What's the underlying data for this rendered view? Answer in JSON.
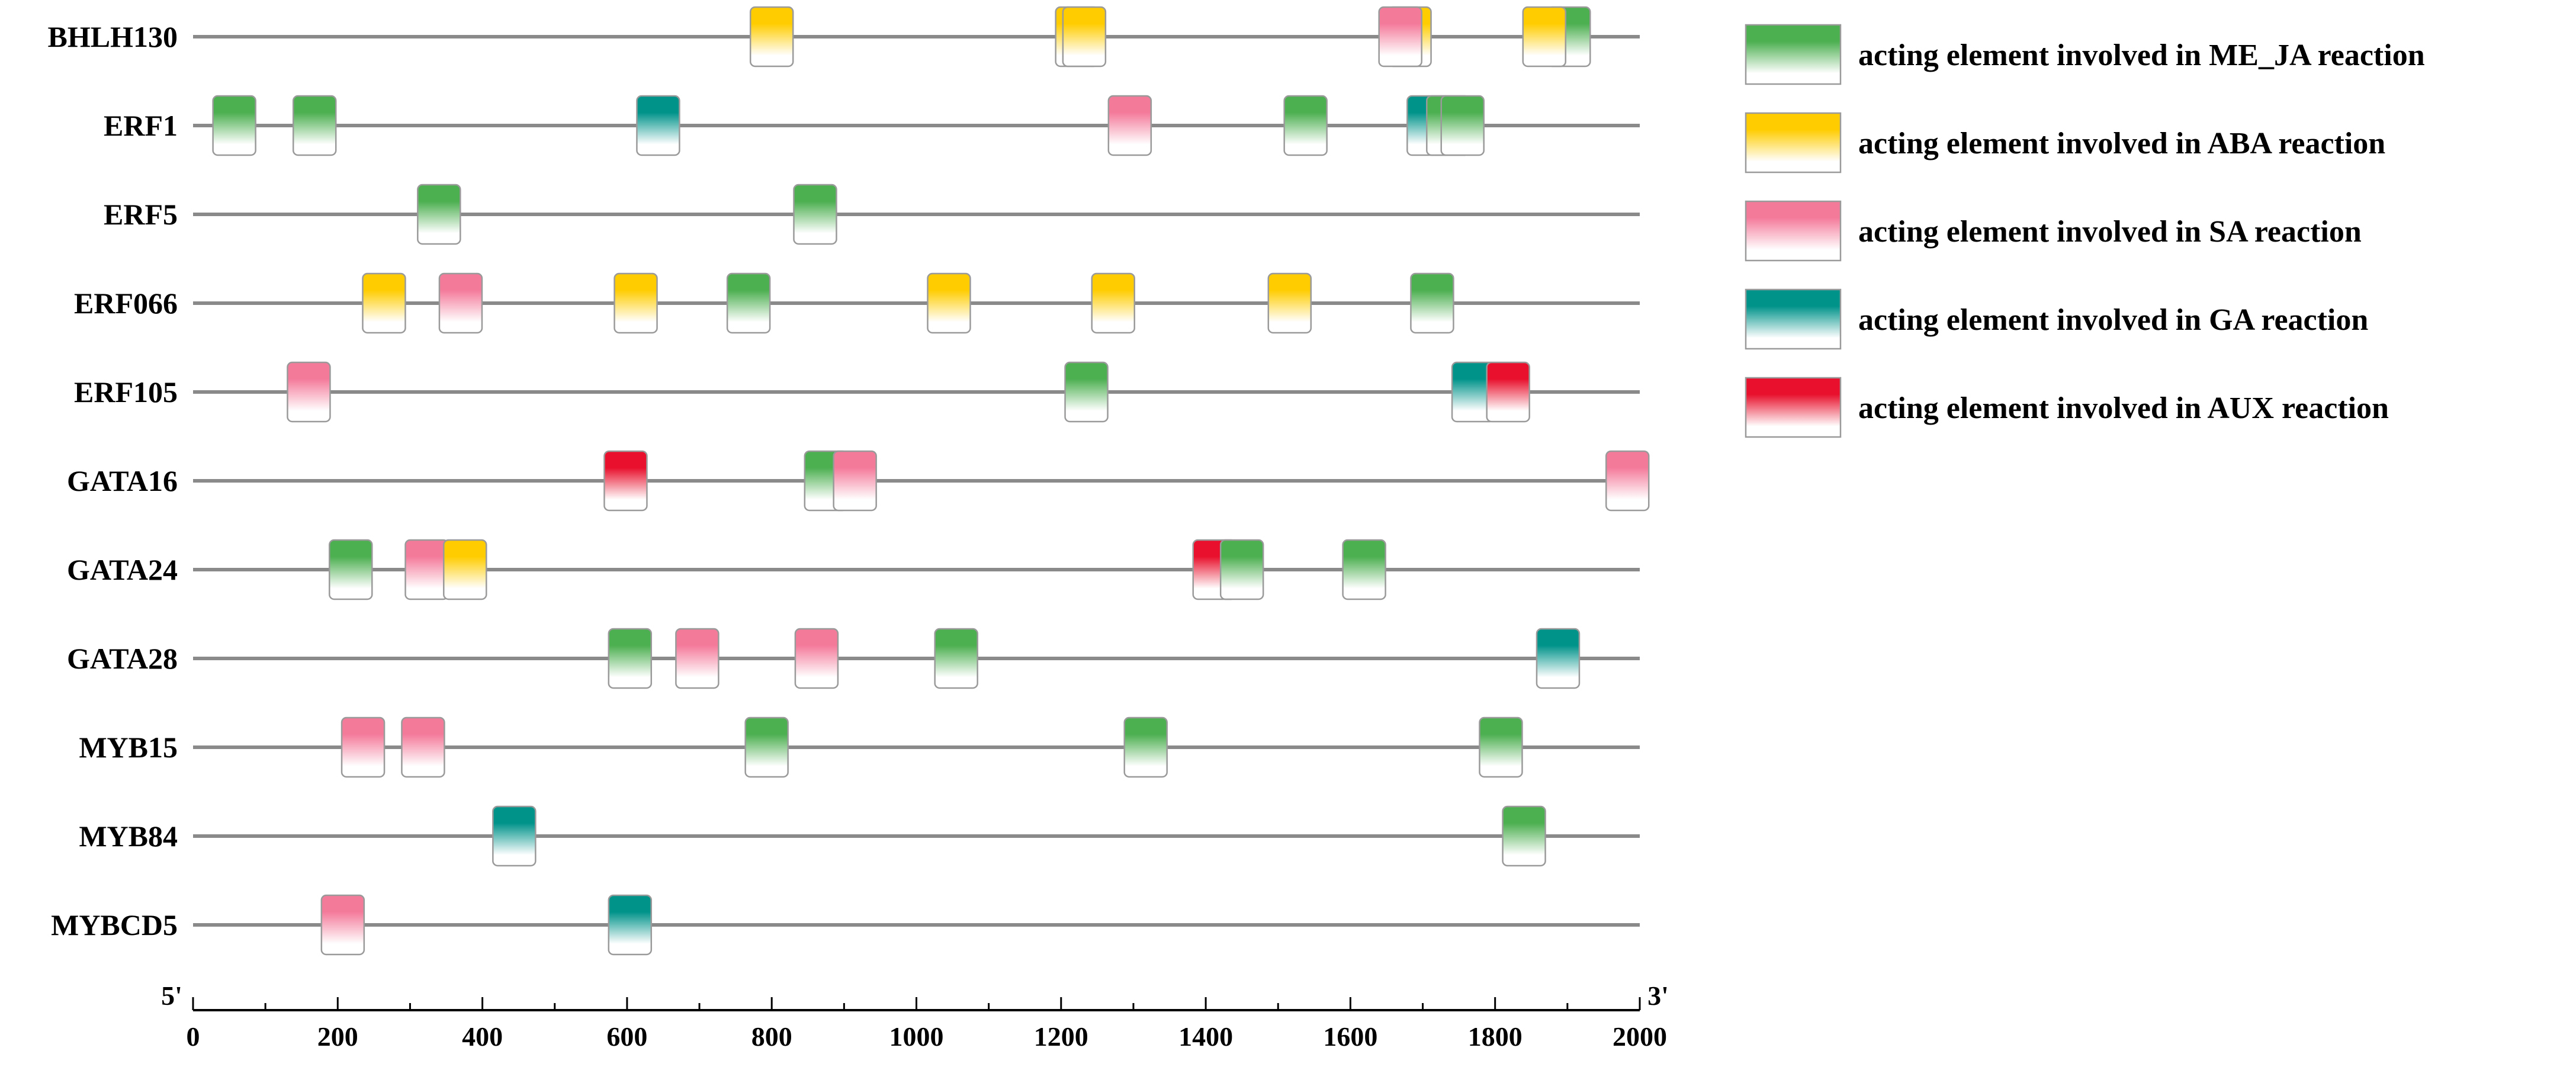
{
  "chart_data": {
    "type": "sequence-feature-map",
    "axis": {
      "min": 0,
      "max": 2000,
      "ticks": [
        0,
        200,
        400,
        600,
        800,
        1000,
        1200,
        1400,
        1600,
        1800,
        2000
      ],
      "start_label": "5'",
      "end_label": "3'"
    },
    "categories": {
      "ME_JA": {
        "label": "acting element involved in ME_JA reaction",
        "color": "#4caf50"
      },
      "ABA": {
        "label": "acting element involved in ABA reaction",
        "color": "#ffcc00"
      },
      "SA": {
        "label": "acting element involved in SA reaction",
        "color": "#f47a9a"
      },
      "GA": {
        "label": "acting element involved in GA reaction",
        "color": "#00938a"
      },
      "AUX": {
        "label": "acting element involved in AUX reaction",
        "color": "#e8102c"
      }
    },
    "legend_order": [
      "ME_JA",
      "ABA",
      "SA",
      "GA",
      "AUX"
    ],
    "genes": [
      {
        "name": "BHLH130",
        "elements": [
          {
            "pos": 800,
            "type": "ABA"
          },
          {
            "pos": 1222,
            "type": "ABA"
          },
          {
            "pos": 1232,
            "type": "ABA"
          },
          {
            "pos": 1682,
            "type": "ABA"
          },
          {
            "pos": 1669,
            "type": "SA"
          },
          {
            "pos": 1902,
            "type": "ME_JA"
          },
          {
            "pos": 1868,
            "type": "ABA"
          }
        ]
      },
      {
        "name": "ERF1",
        "elements": [
          {
            "pos": 57,
            "type": "ME_JA"
          },
          {
            "pos": 168,
            "type": "ME_JA"
          },
          {
            "pos": 643,
            "type": "GA"
          },
          {
            "pos": 1295,
            "type": "SA"
          },
          {
            "pos": 1538,
            "type": "ME_JA"
          },
          {
            "pos": 1708,
            "type": "GA"
          },
          {
            "pos": 1735,
            "type": "ME_JA"
          },
          {
            "pos": 1755,
            "type": "ME_JA"
          }
        ]
      },
      {
        "name": "ERF5",
        "elements": [
          {
            "pos": 340,
            "type": "ME_JA"
          },
          {
            "pos": 860,
            "type": "ME_JA"
          }
        ]
      },
      {
        "name": "ERF066",
        "elements": [
          {
            "pos": 264,
            "type": "ABA"
          },
          {
            "pos": 370,
            "type": "SA"
          },
          {
            "pos": 612,
            "type": "ABA"
          },
          {
            "pos": 768,
            "type": "ME_JA"
          },
          {
            "pos": 1045,
            "type": "ABA"
          },
          {
            "pos": 1272,
            "type": "ABA"
          },
          {
            "pos": 1516,
            "type": "ABA"
          },
          {
            "pos": 1713,
            "type": "ME_JA"
          }
        ]
      },
      {
        "name": "ERF105",
        "elements": [
          {
            "pos": 160,
            "type": "SA"
          },
          {
            "pos": 1235,
            "type": "ME_JA"
          },
          {
            "pos": 1770,
            "type": "GA"
          },
          {
            "pos": 1818,
            "type": "AUX"
          }
        ]
      },
      {
        "name": "GATA16",
        "elements": [
          {
            "pos": 598,
            "type": "AUX"
          },
          {
            "pos": 875,
            "type": "ME_JA"
          },
          {
            "pos": 915,
            "type": "SA"
          },
          {
            "pos": 1983,
            "type": "SA"
          }
        ]
      },
      {
        "name": "GATA24",
        "elements": [
          {
            "pos": 218,
            "type": "ME_JA"
          },
          {
            "pos": 323,
            "type": "SA"
          },
          {
            "pos": 376,
            "type": "ABA"
          },
          {
            "pos": 1412,
            "type": "AUX"
          },
          {
            "pos": 1450,
            "type": "ME_JA"
          },
          {
            "pos": 1619,
            "type": "ME_JA"
          }
        ]
      },
      {
        "name": "GATA28",
        "elements": [
          {
            "pos": 604,
            "type": "ME_JA"
          },
          {
            "pos": 697,
            "type": "SA"
          },
          {
            "pos": 862,
            "type": "SA"
          },
          {
            "pos": 1055,
            "type": "ME_JA"
          },
          {
            "pos": 1887,
            "type": "GA"
          }
        ]
      },
      {
        "name": "MYB15",
        "elements": [
          {
            "pos": 235,
            "type": "SA"
          },
          {
            "pos": 318,
            "type": "SA"
          },
          {
            "pos": 793,
            "type": "ME_JA"
          },
          {
            "pos": 1317,
            "type": "ME_JA"
          },
          {
            "pos": 1808,
            "type": "ME_JA"
          }
        ]
      },
      {
        "name": "MYB84",
        "elements": [
          {
            "pos": 444,
            "type": "GA"
          },
          {
            "pos": 1840,
            "type": "ME_JA"
          }
        ]
      },
      {
        "name": "MYBCD5",
        "elements": [
          {
            "pos": 207,
            "type": "SA"
          },
          {
            "pos": 604,
            "type": "GA"
          }
        ]
      }
    ]
  }
}
